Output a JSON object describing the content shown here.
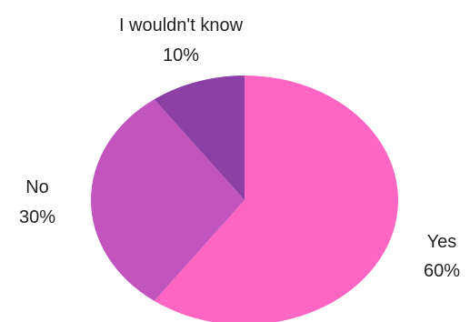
{
  "chart_data": {
    "type": "pie",
    "title": "",
    "legend": "none",
    "slices": [
      {
        "label": "Yes",
        "value": 60,
        "value_label": "60%",
        "color": "#ff66c4"
      },
      {
        "label": "No",
        "value": 30,
        "value_label": "30%",
        "color": "#c255bd"
      },
      {
        "label": "I wouldn't know",
        "value": 10,
        "value_label": "10%",
        "color": "#8c40a6"
      }
    ]
  }
}
